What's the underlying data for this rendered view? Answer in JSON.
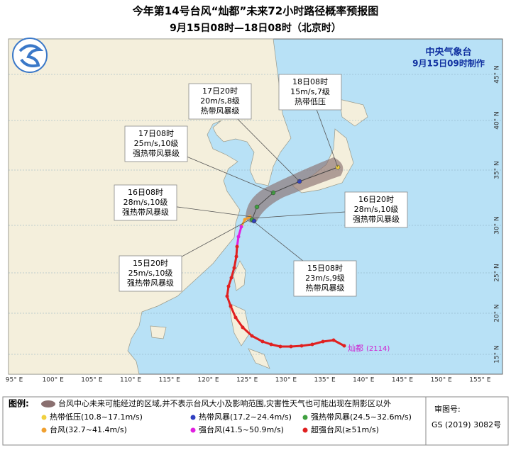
{
  "header": {
    "title": "今年第14号台风“灿都”未来72小时路径概率预报图",
    "subtitle": "9月15日08时—18日08时（北京时）"
  },
  "agency": {
    "name": "中央气象台",
    "issued": "9月15日09时制作"
  },
  "forecasts": [
    {
      "time": "18日08时",
      "wind": "15m/s,7级",
      "grade": "热带低压"
    },
    {
      "time": "17日20时",
      "wind": "20m/s,8级",
      "grade": "热带风暴级"
    },
    {
      "time": "17日08时",
      "wind": "25m/s,10级",
      "grade": "强热带风暴级"
    },
    {
      "time": "16日08时",
      "wind": "28m/s,10级",
      "grade": "强热带风暴级"
    },
    {
      "time": "16日20时",
      "wind": "28m/s,10级",
      "grade": "强热带风暴级"
    },
    {
      "time": "15日20时",
      "wind": "25m/s,10级",
      "grade": "强热带风暴级"
    },
    {
      "time": "15日08时",
      "wind": "23m/s,9级",
      "grade": "热带风暴级"
    }
  ],
  "storm": {
    "name": "灿都",
    "code": "(2114)"
  },
  "longitude_labels": [
    "95° E",
    "100° E",
    "105° E",
    "110° E",
    "115° E",
    "120° E",
    "125° E",
    "130° E",
    "135° E",
    "140° E",
    "145° E",
    "150° E",
    "155° E"
  ],
  "latitude_labels": [
    "45° N",
    "40° N",
    "35° N",
    "30° N",
    "25° N",
    "20° N",
    "15° N"
  ],
  "legend": {
    "title": "图例:",
    "cone_note": "台风中心未来可能经过的区域,并不表示台风大小及影响范围,灾害性天气也可能出现在阴影区以外",
    "items": [
      "热带低压(10.8~17.1m/s)",
      "热带风暴(17.2~24.4m/s)",
      "强热带风暴(24.5~32.6m/s)",
      "台风(32.7~41.4m/s)",
      "强台风(41.5~50.9m/s)",
      "超强台风(≥51m/s)"
    ]
  },
  "approval": {
    "label": "审图号:",
    "number": "GS (2019) 3082号"
  }
}
